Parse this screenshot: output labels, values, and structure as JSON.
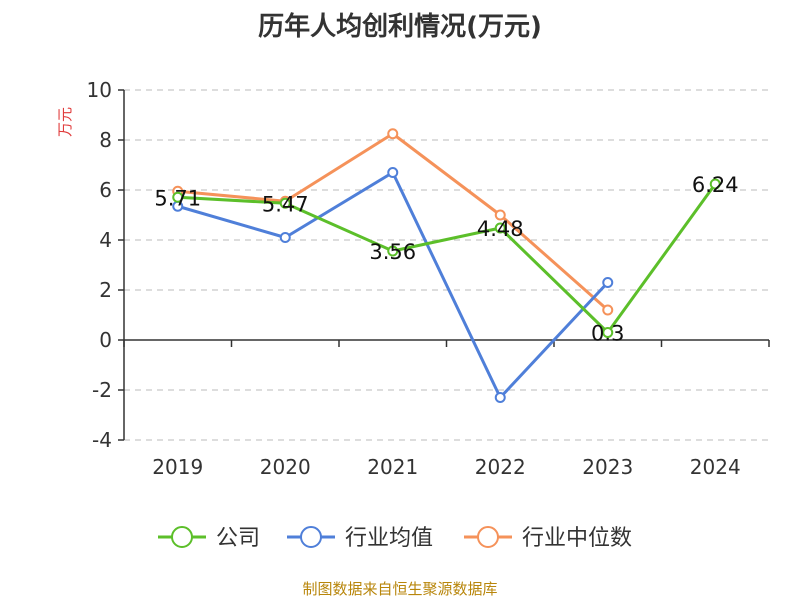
{
  "title": "历年人均创利情况(万元)",
  "source": "制图数据来自恒生聚源数据库",
  "chart_data": {
    "type": "line",
    "title": "历年人均创利情况(万元)",
    "ylabel": "万元",
    "xlabel": "",
    "categories": [
      "2019",
      "2020",
      "2021",
      "2022",
      "2023",
      "2024"
    ],
    "ylim": [
      -4,
      10
    ],
    "yticks": [
      -4,
      -2,
      0,
      2,
      4,
      6,
      8,
      10
    ],
    "grid": true,
    "legend_position": "bottom",
    "series": [
      {
        "name": "公司",
        "color": "#5cbf2a",
        "values": [
          5.71,
          5.47,
          3.56,
          4.48,
          0.3,
          6.24
        ],
        "labels": [
          "5.71",
          "5.47",
          "3.56",
          "4.48",
          "0.3",
          "6.24"
        ]
      },
      {
        "name": "行业均值",
        "color": "#4f7fd9",
        "values": [
          5.35,
          4.1,
          6.7,
          -2.3,
          2.3,
          null
        ]
      },
      {
        "name": "行业中位数",
        "color": "#f5925a",
        "values": [
          5.95,
          5.55,
          8.25,
          5.0,
          1.2,
          null
        ]
      }
    ]
  }
}
